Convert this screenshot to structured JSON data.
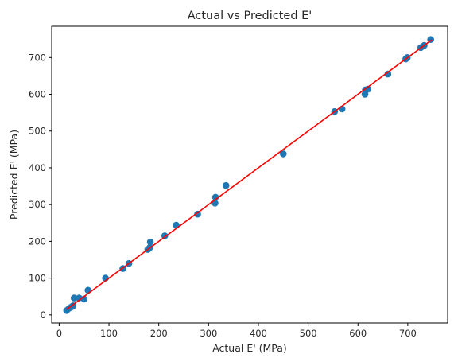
{
  "chart_data": {
    "type": "scatter",
    "title": "Actual vs Predicted E'",
    "xlabel": "Actual E' (MPa)",
    "ylabel": "Predicted E' (MPa)",
    "xlim": [
      -15,
      780
    ],
    "ylim": [
      -22,
      785
    ],
    "xticks": [
      0,
      100,
      200,
      300,
      400,
      500,
      600,
      700
    ],
    "yticks": [
      0,
      100,
      200,
      300,
      400,
      500,
      600,
      700
    ],
    "grid": false,
    "point_color": "#1f77b4",
    "line_color": "#ff0000",
    "reference_line": {
      "x": [
        15,
        748
      ],
      "y": [
        15,
        748
      ]
    },
    "points": [
      {
        "x": 15,
        "y": 12
      },
      {
        "x": 20,
        "y": 18
      },
      {
        "x": 25,
        "y": 22
      },
      {
        "x": 28,
        "y": 25
      },
      {
        "x": 30,
        "y": 46
      },
      {
        "x": 40,
        "y": 46
      },
      {
        "x": 50,
        "y": 43
      },
      {
        "x": 58,
        "y": 67
      },
      {
        "x": 93,
        "y": 100
      },
      {
        "x": 128,
        "y": 126
      },
      {
        "x": 140,
        "y": 140
      },
      {
        "x": 178,
        "y": 178
      },
      {
        "x": 182,
        "y": 183
      },
      {
        "x": 183,
        "y": 198
      },
      {
        "x": 212,
        "y": 215
      },
      {
        "x": 235,
        "y": 244
      },
      {
        "x": 278,
        "y": 274
      },
      {
        "x": 313,
        "y": 304
      },
      {
        "x": 314,
        "y": 320
      },
      {
        "x": 335,
        "y": 352
      },
      {
        "x": 450,
        "y": 438
      },
      {
        "x": 553,
        "y": 553
      },
      {
        "x": 568,
        "y": 560
      },
      {
        "x": 614,
        "y": 600
      },
      {
        "x": 615,
        "y": 612
      },
      {
        "x": 620,
        "y": 614
      },
      {
        "x": 660,
        "y": 655
      },
      {
        "x": 696,
        "y": 696
      },
      {
        "x": 699,
        "y": 700
      },
      {
        "x": 726,
        "y": 727
      },
      {
        "x": 733,
        "y": 733
      },
      {
        "x": 746,
        "y": 749
      }
    ]
  }
}
